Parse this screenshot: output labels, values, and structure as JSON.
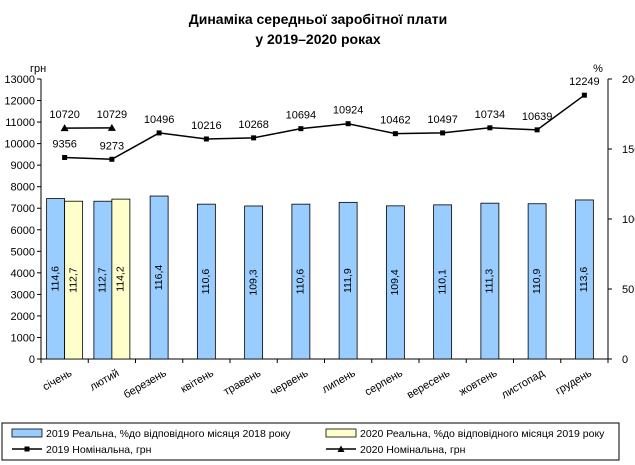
{
  "chart_data": {
    "type": "bar+line",
    "title_line1": "Динаміка середньої заробітної плати",
    "title_line2": "у 2019–2020 роках",
    "left_axis": {
      "unit": "грн",
      "min": 0,
      "max": 13000,
      "step": 1000
    },
    "right_axis": {
      "unit": "%",
      "min": 0,
      "max": 200,
      "step": 50
    },
    "categories": [
      "січень",
      "лютий",
      "березень",
      "квітень",
      "травень",
      "червень",
      "липень",
      "серпень",
      "вересень",
      "жовтень",
      "листопад",
      "грудень"
    ],
    "bar_series": [
      {
        "name": "2019 Реальна, %до відповідного місяця 2018 року",
        "color": "#99ccff",
        "axis": "right",
        "values": [
          114.6,
          112.7,
          116.4,
          110.6,
          109.3,
          110.6,
          111.9,
          109.4,
          110.1,
          111.3,
          110.9,
          113.6
        ],
        "labels": [
          "114,6",
          "112,7",
          "116,4",
          "110,6",
          "109,3",
          "110,6",
          "111,9",
          "109,4",
          "110,1",
          "111,3",
          "110,9",
          "113,6"
        ]
      },
      {
        "name": "2020 Реальна, %до відповідного місяця 2019 року",
        "color": "#ffffcc",
        "axis": "right",
        "values": [
          112.7,
          114.2,
          null,
          null,
          null,
          null,
          null,
          null,
          null,
          null,
          null,
          null
        ],
        "labels": [
          "112,7",
          "114,2",
          "",
          "",
          "",
          "",
          "",
          "",
          "",
          "",
          "",
          ""
        ]
      }
    ],
    "line_series": [
      {
        "name": "2019 Номінальна, грн",
        "marker": "square",
        "axis": "left",
        "values": [
          9356,
          9273,
          10496,
          10216,
          10268,
          10694,
          10924,
          10462,
          10497,
          10734,
          10639,
          12249
        ]
      },
      {
        "name": "2020 Номінальна, грн",
        "marker": "triangle",
        "axis": "left",
        "values": [
          10720,
          10729,
          null,
          null,
          null,
          null,
          null,
          null,
          null,
          null,
          null,
          null
        ]
      }
    ]
  }
}
